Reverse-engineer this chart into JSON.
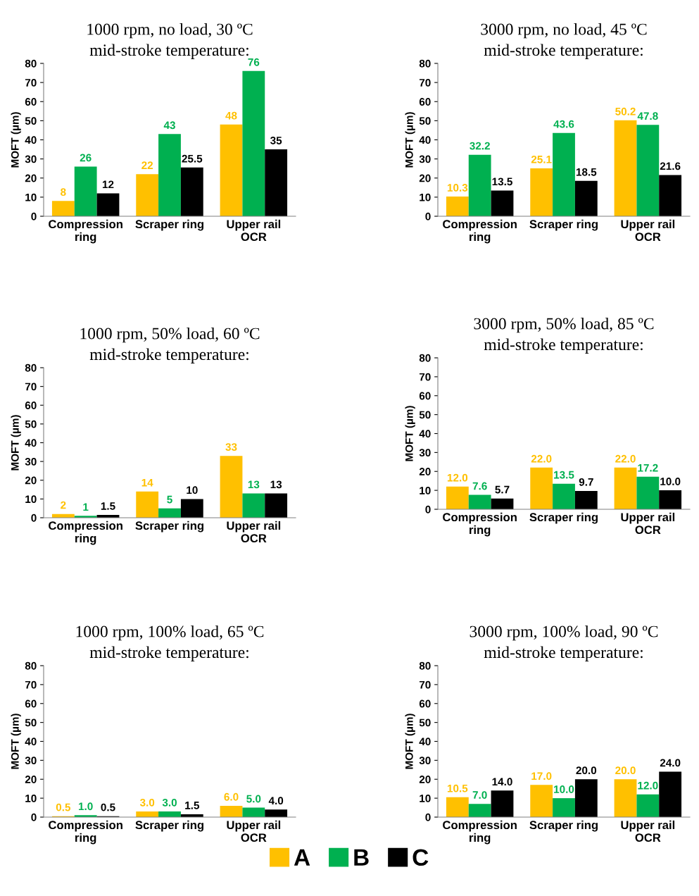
{
  "chart_data": [
    {
      "type": "bar",
      "title": "1000 rpm, no load, 30 ºC\nmid-stroke temperature:",
      "ylabel": "MOFT (µm)",
      "categories": [
        "Compression\nring",
        "Scraper ring",
        "Upper rail\nOCR"
      ],
      "ylim": [
        0,
        80
      ],
      "yticks": [
        0,
        10,
        20,
        30,
        40,
        50,
        60,
        70,
        80
      ],
      "series": [
        {
          "color": "#ffc000",
          "values": [
            8,
            22,
            48
          ],
          "value_labels": [
            "8",
            "22",
            "48"
          ]
        },
        {
          "color": "#00b050",
          "values": [
            26,
            43,
            76
          ],
          "value_labels": [
            "26",
            "43",
            "76"
          ]
        },
        {
          "color": "#000000",
          "values": [
            12,
            25.5,
            35
          ],
          "value_labels": [
            "12",
            "25.5",
            "35"
          ]
        }
      ]
    },
    {
      "type": "bar",
      "title": "3000 rpm, no load, 45 ºC\nmid-stroke temperature:",
      "ylabel": "MOFT (µm)",
      "categories": [
        "Compression\nring",
        "Scraper ring",
        "Upper rail\nOCR"
      ],
      "ylim": [
        0,
        80
      ],
      "yticks": [
        0,
        10,
        20,
        30,
        40,
        50,
        60,
        70,
        80
      ],
      "series": [
        {
          "color": "#ffc000",
          "values": [
            10.3,
            25.1,
            50.2
          ],
          "value_labels": [
            "10.3",
            "25.1",
            "50.2"
          ]
        },
        {
          "color": "#00b050",
          "values": [
            32.2,
            43.6,
            47.8
          ],
          "value_labels": [
            "32.2",
            "43.6",
            "47.8"
          ]
        },
        {
          "color": "#000000",
          "values": [
            13.5,
            18.5,
            21.6
          ],
          "value_labels": [
            "13.5",
            "18.5",
            "21.6"
          ]
        }
      ]
    },
    {
      "type": "bar",
      "title": "1000 rpm, 50% load, 60 ºC\nmid-stroke temperature:",
      "ylabel": "MOFT (µm)",
      "categories": [
        "Compression\nring",
        "Scraper ring",
        "Upper rail\nOCR"
      ],
      "ylim": [
        0,
        80
      ],
      "yticks": [
        0,
        10,
        20,
        30,
        40,
        50,
        60,
        70,
        80
      ],
      "series": [
        {
          "color": "#ffc000",
          "values": [
            2,
            14,
            33
          ],
          "value_labels": [
            "2",
            "14",
            "33"
          ]
        },
        {
          "color": "#00b050",
          "values": [
            1,
            5,
            13
          ],
          "value_labels": [
            "1",
            "5",
            "13"
          ]
        },
        {
          "color": "#000000",
          "values": [
            1.5,
            10,
            13
          ],
          "value_labels": [
            "1.5",
            "10",
            "13"
          ]
        }
      ]
    },
    {
      "type": "bar",
      "title": "3000 rpm, 50% load, 85 ºC\nmid-stroke temperature:",
      "ylabel": "MOFT (µm)",
      "categories": [
        "Compression\nring",
        "Scraper ring",
        "Upper rail\nOCR"
      ],
      "ylim": [
        0,
        80
      ],
      "yticks": [
        0,
        10,
        20,
        30,
        40,
        50,
        60,
        70,
        80
      ],
      "series": [
        {
          "color": "#ffc000",
          "values": [
            12.0,
            22.0,
            22.0
          ],
          "value_labels": [
            "12.0",
            "22.0",
            "22.0"
          ]
        },
        {
          "color": "#00b050",
          "values": [
            7.6,
            13.5,
            17.2
          ],
          "value_labels": [
            "7.6",
            "13.5",
            "17.2"
          ]
        },
        {
          "color": "#000000",
          "values": [
            5.7,
            9.7,
            10.0
          ],
          "value_labels": [
            "5.7",
            "9.7",
            "10.0"
          ]
        }
      ]
    },
    {
      "type": "bar",
      "title": "1000 rpm, 100% load, 65 ºC\nmid-stroke temperature:",
      "ylabel": "MOFT (µm)",
      "categories": [
        "Compression\nring",
        "Scraper ring",
        "Upper rail\nOCR"
      ],
      "ylim": [
        0,
        80
      ],
      "yticks": [
        0,
        10,
        20,
        30,
        40,
        50,
        60,
        70,
        80
      ],
      "series": [
        {
          "color": "#ffc000",
          "values": [
            0.5,
            3.0,
            6.0
          ],
          "value_labels": [
            "0.5",
            "3.0",
            "6.0"
          ]
        },
        {
          "color": "#00b050",
          "values": [
            1.0,
            3.0,
            5.0
          ],
          "value_labels": [
            "1.0",
            "3.0",
            "5.0"
          ]
        },
        {
          "color": "#000000",
          "values": [
            0.5,
            1.5,
            4.0
          ],
          "value_labels": [
            "0.5",
            "1.5",
            "4.0"
          ]
        }
      ]
    },
    {
      "type": "bar",
      "title": "3000 rpm, 100% load, 90 ºC\nmid-stroke temperature:",
      "ylabel": "MOFT (µm)",
      "categories": [
        "Compression\nring",
        "Scraper ring",
        "Upper rail\nOCR"
      ],
      "ylim": [
        0,
        80
      ],
      "yticks": [
        0,
        10,
        20,
        30,
        40,
        50,
        60,
        70,
        80
      ],
      "legend": "bottom",
      "series": [
        {
          "name": "A",
          "color": "#ffc000",
          "values": [
            10.5,
            17.0,
            20.0
          ],
          "value_labels": [
            "10.5",
            "17.0",
            "20.0"
          ]
        },
        {
          "name": "B",
          "color": "#00b050",
          "values": [
            7.0,
            10.0,
            12.0
          ],
          "value_labels": [
            "7.0",
            "10.0",
            "12.0"
          ]
        },
        {
          "name": "C",
          "color": "#000000",
          "values": [
            14.0,
            20.0,
            24.0
          ],
          "value_labels": [
            "14.0",
            "20.0",
            "24.0"
          ]
        }
      ]
    }
  ]
}
